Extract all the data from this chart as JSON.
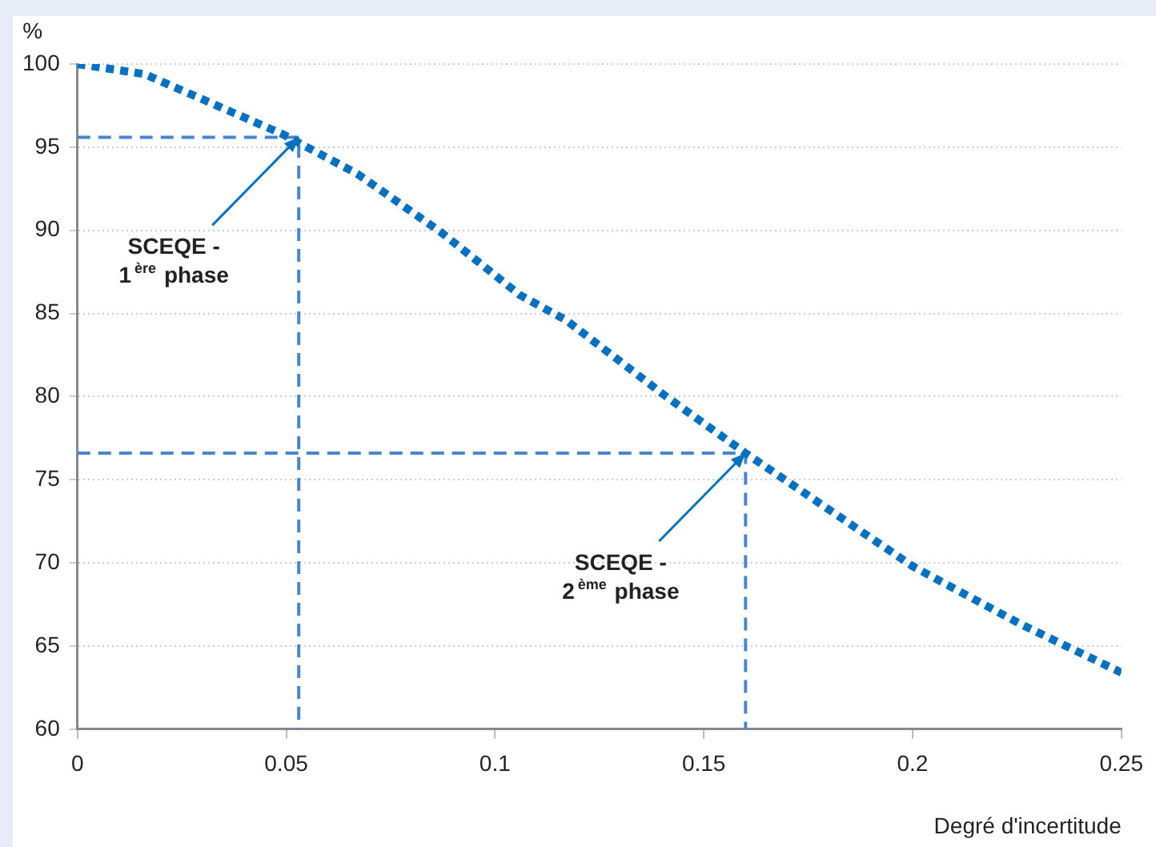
{
  "chart_data": {
    "type": "line",
    "xlabel": "Degré d'incertitude",
    "ylabel": "%",
    "xlim": [
      0,
      0.25
    ],
    "xticks": [
      0,
      0.05,
      0.1,
      0.15,
      0.2,
      0.25
    ],
    "ylim": [
      60,
      100
    ],
    "yticks": [
      60,
      65,
      70,
      75,
      80,
      85,
      90,
      95,
      100
    ],
    "grid": "y",
    "marker": "none",
    "legend": false,
    "series": [
      {
        "color": "#0070c0",
        "line_style": "dotted",
        "x": [
          0,
          0.016,
          0.049,
          0.067,
          0.087,
          0.106,
          0.117,
          0.141,
          0.16,
          0.2,
          0.226,
          0.25
        ],
        "values": [
          100,
          99.4,
          95.8,
          93.4,
          89.9,
          86.1,
          84.6,
          80,
          76.6,
          69.8,
          66.3,
          63.4
        ]
      },
      {
        "color": "#4a86d0",
        "line_style": "dashed",
        "x": [
          0,
          0.053,
          0.053
        ],
        "values": [
          95.6,
          95.6,
          60
        ]
      },
      {
        "color": "#4a86d0",
        "line_style": "dashed",
        "x": [
          0,
          0.16,
          0.16
        ],
        "values": [
          76.6,
          76.6,
          60
        ]
      }
    ],
    "annotations": [
      {
        "text": "SCEQE - 1$^{ère}$ phase",
        "x": 0.053,
        "y": 95.6
      },
      {
        "text": "SCEQE - 2$^{ème}$ phase",
        "x": 0.16,
        "y": 76.6
      }
    ]
  }
}
